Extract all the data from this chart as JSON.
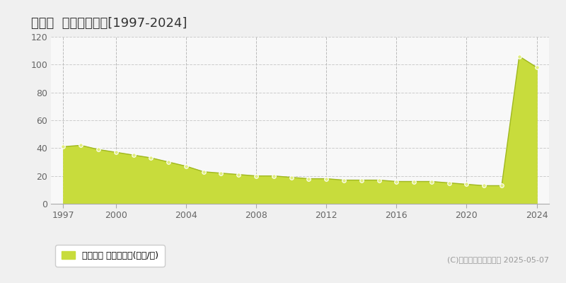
{
  "title": "平群町  基準地価推移[1997-2024]",
  "years": [
    1997,
    1998,
    1999,
    2000,
    2001,
    2002,
    2003,
    2004,
    2005,
    2006,
    2007,
    2008,
    2009,
    2010,
    2011,
    2012,
    2013,
    2014,
    2015,
    2016,
    2017,
    2018,
    2019,
    2020,
    2021,
    2022,
    2023,
    2024
  ],
  "values": [
    41,
    42,
    39,
    37,
    35,
    33,
    30,
    27,
    23,
    22,
    21,
    20,
    20,
    19,
    18,
    18,
    17,
    17,
    17,
    16,
    16,
    16,
    15,
    14,
    13,
    13,
    106,
    98
  ],
  "fill_color": "#c8dc3c",
  "line_color": "#a0b820",
  "marker_facecolor": "#e0ec80",
  "marker_edgecolor": "#ffffff",
  "bg_color": "#f0f0f0",
  "plot_bg_color": "#f8f8f8",
  "grid_color_h": "#cccccc",
  "grid_color_v": "#bbbbbb",
  "ylim": [
    0,
    120
  ],
  "yticks": [
    0,
    20,
    40,
    60,
    80,
    100,
    120
  ],
  "xtick_labels": [
    1997,
    2000,
    2004,
    2008,
    2012,
    2016,
    2020,
    2024
  ],
  "xlim_left": 1996.3,
  "xlim_right": 2024.7,
  "legend_label": "基準地価 平均坪単価(万円/坪)",
  "copyright_text": "(C)土地価格ドットコム 2025-05-07",
  "title_fontsize": 13,
  "tick_fontsize": 9,
  "legend_fontsize": 9,
  "copyright_fontsize": 8
}
